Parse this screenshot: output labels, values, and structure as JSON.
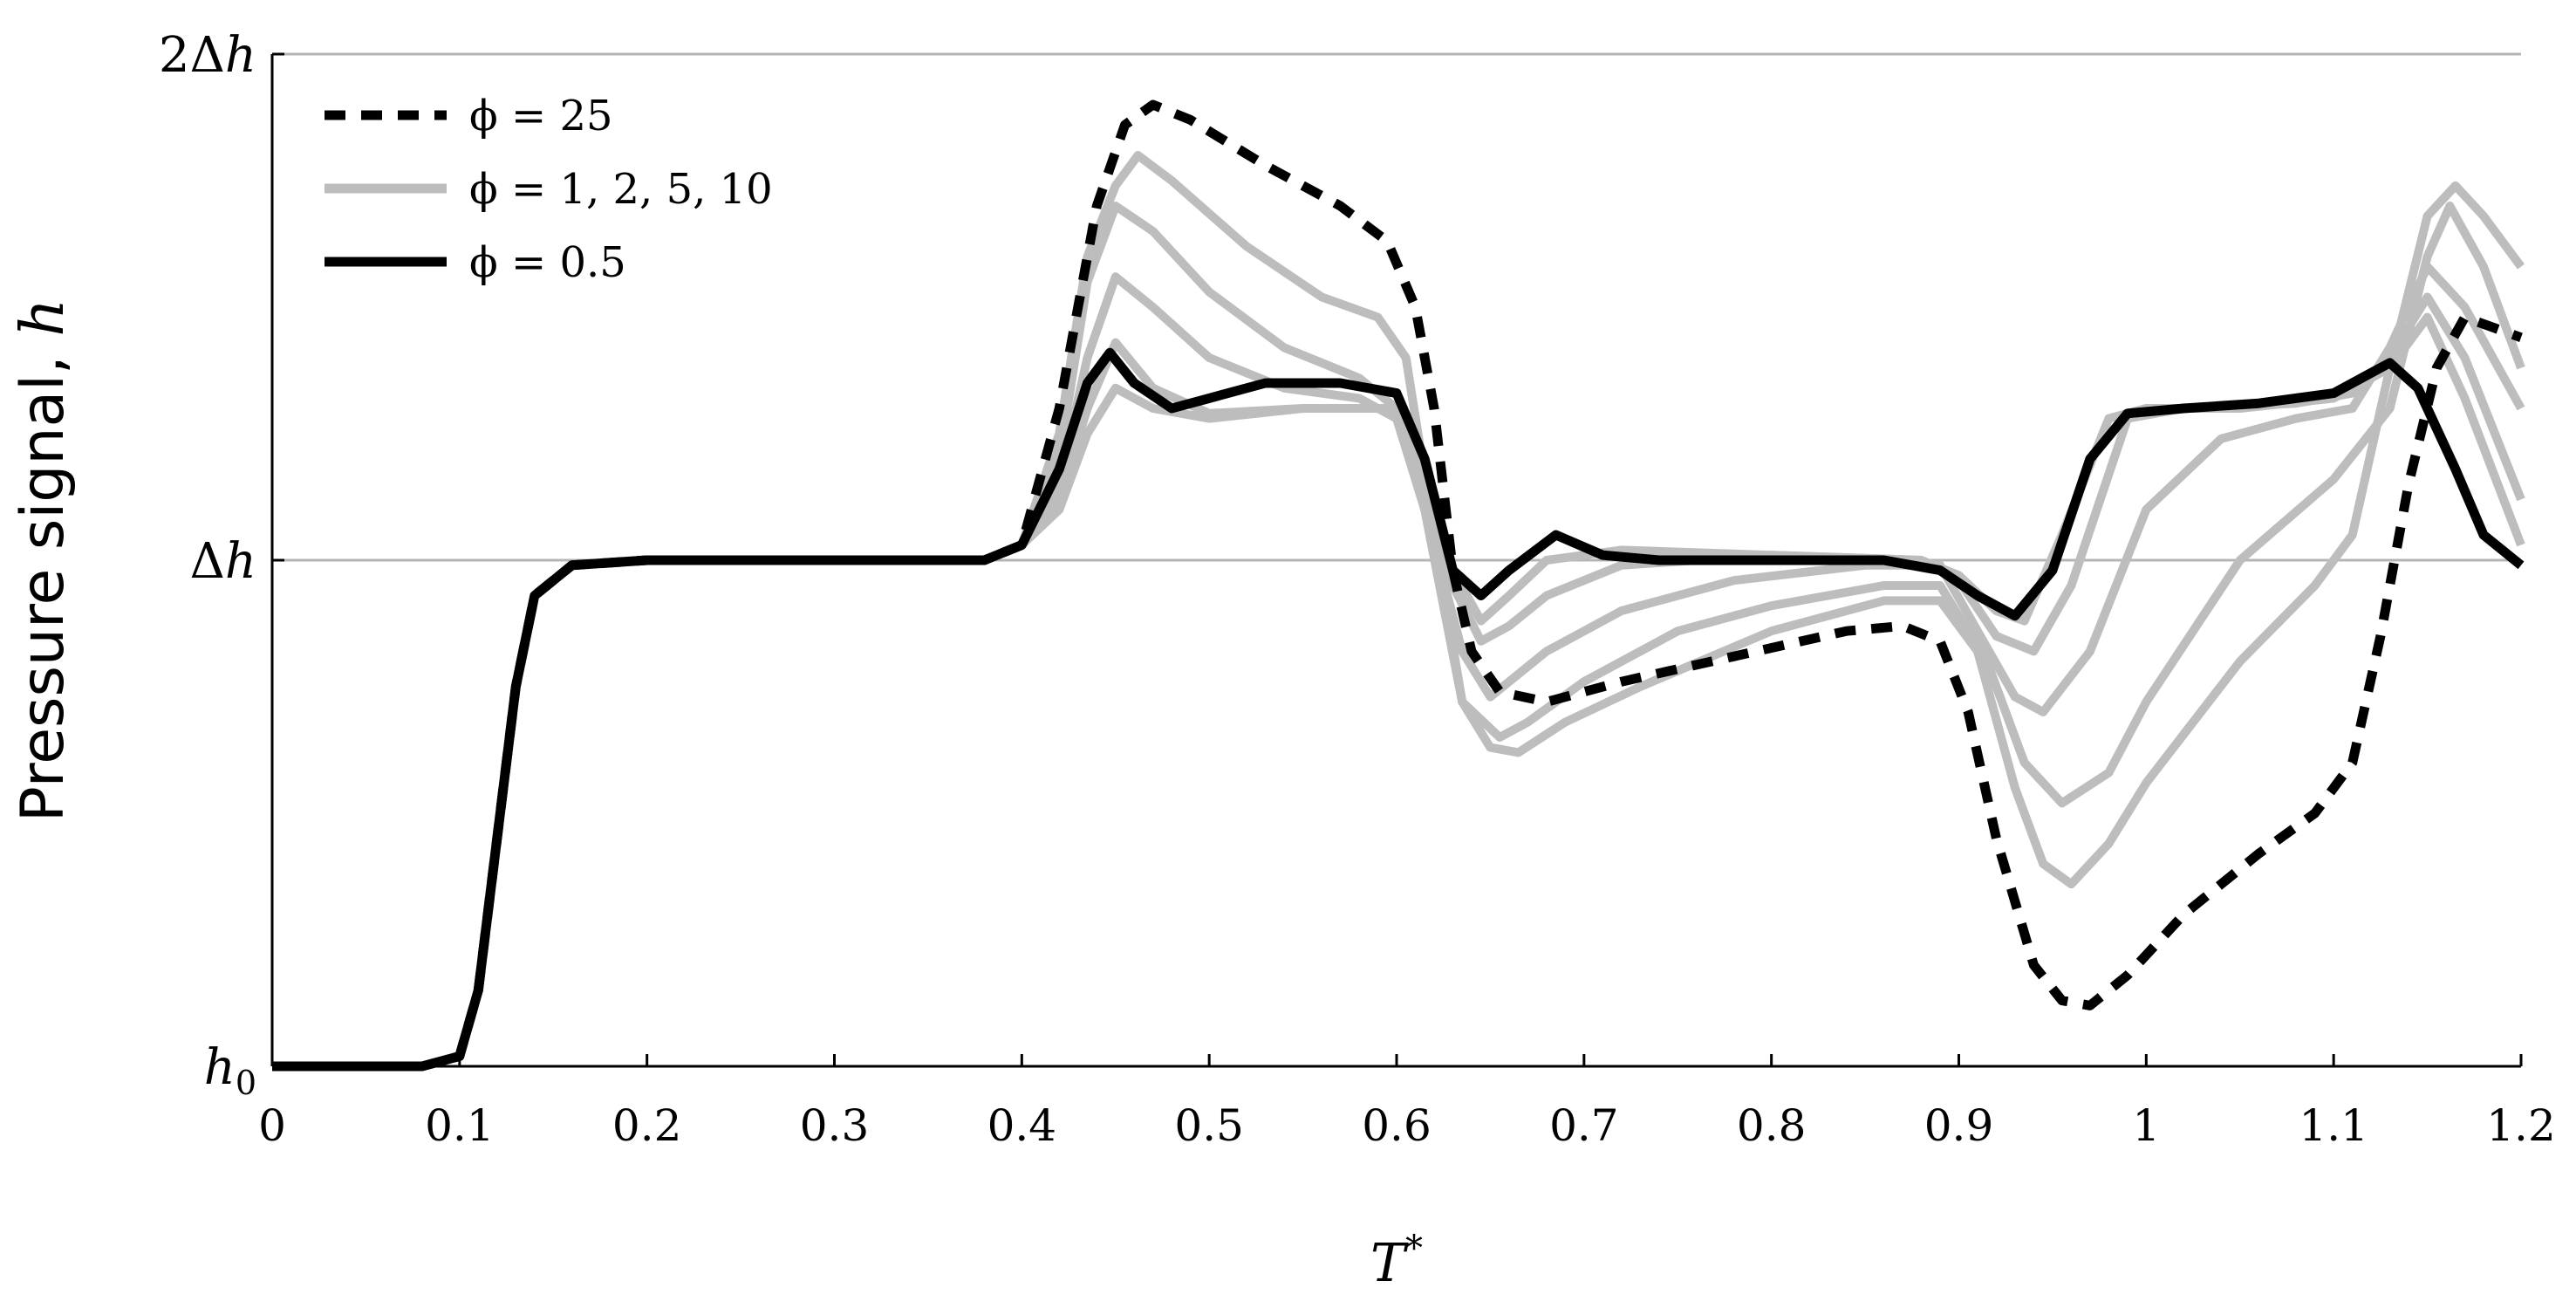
{
  "chart_data": {
    "type": "line",
    "xlabel": "T*",
    "ylabel": "Pressure signal, h",
    "xlim": [
      0,
      1.2
    ],
    "ylim": [
      0,
      2
    ],
    "x_ticks": [
      "0",
      "0.1",
      "0.2",
      "0.3",
      "0.4",
      "0.5",
      "0.6",
      "0.7",
      "0.8",
      "0.9",
      "1",
      "1.1",
      "1.2"
    ],
    "y_ticks": [
      {
        "value": 0,
        "label": "h0"
      },
      {
        "value": 1,
        "label": "Δh"
      },
      {
        "value": 2,
        "label": "2Δh"
      }
    ],
    "grid": "horizontal",
    "legend_position": "top-left",
    "legend": [
      {
        "label": "ϕ = 25",
        "style": "dashed",
        "color": "#000000"
      },
      {
        "label": "ϕ = 1, 2, 5, 10",
        "style": "solid",
        "color": "#bdbdbd"
      },
      {
        "label": "ϕ = 0.5",
        "style": "solid",
        "color": "#000000"
      }
    ],
    "series": [
      {
        "name": "ϕ = 1, 2, 5, 10",
        "color": "#bdbdbd",
        "style": "solid",
        "points": [
          [
            0,
            0
          ],
          [
            0.08,
            0
          ],
          [
            0.1,
            0.02
          ],
          [
            0.11,
            0.15
          ],
          [
            0.12,
            0.45
          ],
          [
            0.13,
            0.75
          ],
          [
            0.14,
            0.93
          ],
          [
            0.16,
            0.99
          ],
          [
            0.2,
            1
          ],
          [
            0.38,
            1
          ],
          [
            0.4,
            1.03
          ],
          [
            0.42,
            1.25
          ],
          [
            0.435,
            1.6
          ],
          [
            0.45,
            1.74
          ],
          [
            0.462,
            1.8
          ],
          [
            0.48,
            1.75
          ],
          [
            0.52,
            1.62
          ],
          [
            0.56,
            1.52
          ],
          [
            0.59,
            1.48
          ],
          [
            0.605,
            1.4
          ],
          [
            0.62,
            1.05
          ],
          [
            0.635,
            0.72
          ],
          [
            0.65,
            0.63
          ],
          [
            0.665,
            0.62
          ],
          [
            0.69,
            0.68
          ],
          [
            0.73,
            0.75
          ],
          [
            0.8,
            0.86
          ],
          [
            0.86,
            0.92
          ],
          [
            0.89,
            0.92
          ],
          [
            0.91,
            0.82
          ],
          [
            0.93,
            0.55
          ],
          [
            0.945,
            0.4
          ],
          [
            0.96,
            0.36
          ],
          [
            0.98,
            0.44
          ],
          [
            1.0,
            0.56
          ],
          [
            1.05,
            0.8
          ],
          [
            1.09,
            0.95
          ],
          [
            1.11,
            1.05
          ],
          [
            1.13,
            1.38
          ],
          [
            1.15,
            1.68
          ],
          [
            1.165,
            1.74
          ],
          [
            1.18,
            1.68
          ],
          [
            1.2,
            1.58
          ]
        ]
      },
      {
        "name": "ϕ = 1, 2, 5, 10",
        "color": "#bdbdbd",
        "style": "solid",
        "points": [
          [
            0,
            0
          ],
          [
            0.08,
            0
          ],
          [
            0.1,
            0.02
          ],
          [
            0.11,
            0.15
          ],
          [
            0.12,
            0.45
          ],
          [
            0.13,
            0.75
          ],
          [
            0.14,
            0.93
          ],
          [
            0.16,
            0.99
          ],
          [
            0.2,
            1
          ],
          [
            0.38,
            1
          ],
          [
            0.4,
            1.03
          ],
          [
            0.42,
            1.2
          ],
          [
            0.435,
            1.55
          ],
          [
            0.45,
            1.7
          ],
          [
            0.47,
            1.65
          ],
          [
            0.5,
            1.53
          ],
          [
            0.54,
            1.42
          ],
          [
            0.58,
            1.36
          ],
          [
            0.6,
            1.3
          ],
          [
            0.615,
            1.1
          ],
          [
            0.635,
            0.72
          ],
          [
            0.655,
            0.65
          ],
          [
            0.67,
            0.68
          ],
          [
            0.7,
            0.76
          ],
          [
            0.75,
            0.86
          ],
          [
            0.8,
            0.91
          ],
          [
            0.86,
            0.95
          ],
          [
            0.89,
            0.95
          ],
          [
            0.915,
            0.8
          ],
          [
            0.935,
            0.6
          ],
          [
            0.955,
            0.52
          ],
          [
            0.98,
            0.58
          ],
          [
            1.0,
            0.72
          ],
          [
            1.05,
            1.0
          ],
          [
            1.1,
            1.16
          ],
          [
            1.13,
            1.3
          ],
          [
            1.15,
            1.6
          ],
          [
            1.162,
            1.7
          ],
          [
            1.18,
            1.58
          ],
          [
            1.2,
            1.38
          ]
        ]
      },
      {
        "name": "ϕ = 1, 2, 5, 10",
        "color": "#bdbdbd",
        "style": "solid",
        "points": [
          [
            0,
            0
          ],
          [
            0.08,
            0
          ],
          [
            0.1,
            0.02
          ],
          [
            0.11,
            0.15
          ],
          [
            0.12,
            0.45
          ],
          [
            0.13,
            0.75
          ],
          [
            0.14,
            0.93
          ],
          [
            0.16,
            0.99
          ],
          [
            0.2,
            1
          ],
          [
            0.38,
            1
          ],
          [
            0.4,
            1.03
          ],
          [
            0.42,
            1.15
          ],
          [
            0.435,
            1.4
          ],
          [
            0.45,
            1.56
          ],
          [
            0.47,
            1.5
          ],
          [
            0.5,
            1.4
          ],
          [
            0.54,
            1.34
          ],
          [
            0.58,
            1.32
          ],
          [
            0.6,
            1.28
          ],
          [
            0.615,
            1.1
          ],
          [
            0.635,
            0.82
          ],
          [
            0.65,
            0.73
          ],
          [
            0.66,
            0.76
          ],
          [
            0.68,
            0.82
          ],
          [
            0.72,
            0.9
          ],
          [
            0.78,
            0.96
          ],
          [
            0.85,
            0.99
          ],
          [
            0.89,
            0.99
          ],
          [
            0.91,
            0.86
          ],
          [
            0.93,
            0.73
          ],
          [
            0.945,
            0.7
          ],
          [
            0.97,
            0.82
          ],
          [
            1.0,
            1.1
          ],
          [
            1.04,
            1.24
          ],
          [
            1.08,
            1.28
          ],
          [
            1.11,
            1.3
          ],
          [
            1.13,
            1.42
          ],
          [
            1.15,
            1.58
          ],
          [
            1.17,
            1.5
          ],
          [
            1.2,
            1.3
          ]
        ]
      },
      {
        "name": "ϕ = 1, 2, 5, 10",
        "color": "#bdbdbd",
        "style": "solid",
        "points": [
          [
            0,
            0
          ],
          [
            0.08,
            0
          ],
          [
            0.1,
            0.02
          ],
          [
            0.11,
            0.15
          ],
          [
            0.12,
            0.45
          ],
          [
            0.13,
            0.75
          ],
          [
            0.14,
            0.93
          ],
          [
            0.16,
            0.99
          ],
          [
            0.2,
            1
          ],
          [
            0.38,
            1
          ],
          [
            0.4,
            1.03
          ],
          [
            0.42,
            1.12
          ],
          [
            0.435,
            1.3
          ],
          [
            0.45,
            1.43
          ],
          [
            0.47,
            1.34
          ],
          [
            0.5,
            1.29
          ],
          [
            0.55,
            1.3
          ],
          [
            0.6,
            1.3
          ],
          [
            0.61,
            1.22
          ],
          [
            0.63,
            0.95
          ],
          [
            0.645,
            0.84
          ],
          [
            0.66,
            0.87
          ],
          [
            0.68,
            0.93
          ],
          [
            0.72,
            0.99
          ],
          [
            0.8,
            1.01
          ],
          [
            0.88,
            1.0
          ],
          [
            0.9,
            0.96
          ],
          [
            0.92,
            0.85
          ],
          [
            0.94,
            0.82
          ],
          [
            0.96,
            0.95
          ],
          [
            0.99,
            1.28
          ],
          [
            1.02,
            1.3
          ],
          [
            1.08,
            1.31
          ],
          [
            1.11,
            1.33
          ],
          [
            1.13,
            1.4
          ],
          [
            1.15,
            1.52
          ],
          [
            1.17,
            1.4
          ],
          [
            1.2,
            1.12
          ]
        ]
      },
      {
        "name": "ϕ = 1, 2, 5, 10",
        "color": "#bdbdbd",
        "style": "solid",
        "points": [
          [
            0,
            0
          ],
          [
            0.08,
            0
          ],
          [
            0.1,
            0.02
          ],
          [
            0.11,
            0.15
          ],
          [
            0.12,
            0.45
          ],
          [
            0.13,
            0.75
          ],
          [
            0.14,
            0.93
          ],
          [
            0.16,
            0.99
          ],
          [
            0.2,
            1
          ],
          [
            0.38,
            1
          ],
          [
            0.4,
            1.03
          ],
          [
            0.42,
            1.1
          ],
          [
            0.435,
            1.25
          ],
          [
            0.45,
            1.34
          ],
          [
            0.47,
            1.3
          ],
          [
            0.5,
            1.28
          ],
          [
            0.55,
            1.3
          ],
          [
            0.6,
            1.3
          ],
          [
            0.61,
            1.22
          ],
          [
            0.63,
            0.98
          ],
          [
            0.645,
            0.88
          ],
          [
            0.66,
            0.93
          ],
          [
            0.68,
            1.0
          ],
          [
            0.72,
            1.02
          ],
          [
            0.8,
            1.01
          ],
          [
            0.88,
            1.0
          ],
          [
            0.9,
            0.97
          ],
          [
            0.92,
            0.9
          ],
          [
            0.935,
            0.88
          ],
          [
            0.955,
            1.05
          ],
          [
            0.98,
            1.28
          ],
          [
            1.0,
            1.3
          ],
          [
            1.05,
            1.3
          ],
          [
            1.1,
            1.32
          ],
          [
            1.13,
            1.38
          ],
          [
            1.15,
            1.48
          ],
          [
            1.17,
            1.32
          ],
          [
            1.2,
            1.03
          ]
        ]
      },
      {
        "name": "ϕ = 25",
        "color": "#000000",
        "style": "dashed",
        "points": [
          [
            0,
            0
          ],
          [
            0.08,
            0
          ],
          [
            0.1,
            0.02
          ],
          [
            0.11,
            0.15
          ],
          [
            0.12,
            0.45
          ],
          [
            0.13,
            0.75
          ],
          [
            0.14,
            0.93
          ],
          [
            0.16,
            0.99
          ],
          [
            0.2,
            1
          ],
          [
            0.38,
            1
          ],
          [
            0.4,
            1.03
          ],
          [
            0.42,
            1.3
          ],
          [
            0.44,
            1.7
          ],
          [
            0.455,
            1.86
          ],
          [
            0.47,
            1.9
          ],
          [
            0.49,
            1.87
          ],
          [
            0.53,
            1.78
          ],
          [
            0.57,
            1.7
          ],
          [
            0.595,
            1.63
          ],
          [
            0.61,
            1.5
          ],
          [
            0.62,
            1.3
          ],
          [
            0.63,
            0.98
          ],
          [
            0.64,
            0.82
          ],
          [
            0.655,
            0.74
          ],
          [
            0.68,
            0.72
          ],
          [
            0.72,
            0.76
          ],
          [
            0.78,
            0.81
          ],
          [
            0.84,
            0.86
          ],
          [
            0.87,
            0.87
          ],
          [
            0.89,
            0.84
          ],
          [
            0.905,
            0.7
          ],
          [
            0.92,
            0.45
          ],
          [
            0.94,
            0.2
          ],
          [
            0.955,
            0.13
          ],
          [
            0.97,
            0.12
          ],
          [
            0.99,
            0.18
          ],
          [
            1.02,
            0.3
          ],
          [
            1.06,
            0.42
          ],
          [
            1.09,
            0.5
          ],
          [
            1.11,
            0.6
          ],
          [
            1.125,
            0.85
          ],
          [
            1.14,
            1.15
          ],
          [
            1.155,
            1.38
          ],
          [
            1.17,
            1.48
          ],
          [
            1.185,
            1.46
          ],
          [
            1.2,
            1.44
          ]
        ]
      },
      {
        "name": "ϕ = 0.5",
        "color": "#000000",
        "style": "solid",
        "points": [
          [
            0,
            0
          ],
          [
            0.08,
            0
          ],
          [
            0.1,
            0.02
          ],
          [
            0.11,
            0.15
          ],
          [
            0.12,
            0.45
          ],
          [
            0.13,
            0.75
          ],
          [
            0.14,
            0.93
          ],
          [
            0.16,
            0.99
          ],
          [
            0.2,
            1
          ],
          [
            0.38,
            1
          ],
          [
            0.4,
            1.03
          ],
          [
            0.42,
            1.18
          ],
          [
            0.435,
            1.35
          ],
          [
            0.447,
            1.41
          ],
          [
            0.46,
            1.35
          ],
          [
            0.48,
            1.3
          ],
          [
            0.5,
            1.32
          ],
          [
            0.53,
            1.35
          ],
          [
            0.57,
            1.35
          ],
          [
            0.6,
            1.33
          ],
          [
            0.615,
            1.2
          ],
          [
            0.63,
            0.98
          ],
          [
            0.645,
            0.93
          ],
          [
            0.66,
            0.98
          ],
          [
            0.685,
            1.05
          ],
          [
            0.71,
            1.01
          ],
          [
            0.74,
            1.0
          ],
          [
            0.8,
            1.0
          ],
          [
            0.86,
            1.0
          ],
          [
            0.89,
            0.98
          ],
          [
            0.91,
            0.93
          ],
          [
            0.93,
            0.89
          ],
          [
            0.95,
            0.98
          ],
          [
            0.97,
            1.2
          ],
          [
            0.99,
            1.29
          ],
          [
            1.02,
            1.3
          ],
          [
            1.06,
            1.31
          ],
          [
            1.1,
            1.33
          ],
          [
            1.12,
            1.37
          ],
          [
            1.13,
            1.39
          ],
          [
            1.145,
            1.34
          ],
          [
            1.165,
            1.18
          ],
          [
            1.18,
            1.05
          ],
          [
            1.2,
            0.99
          ]
        ]
      }
    ]
  }
}
